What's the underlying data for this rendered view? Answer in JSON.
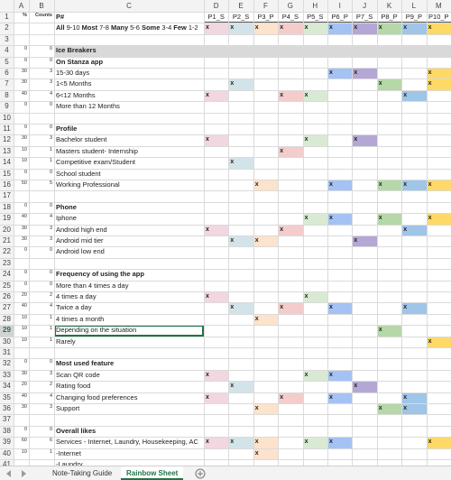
{
  "columns": [
    "A",
    "B",
    "C",
    "D",
    "E",
    "F",
    "G",
    "H",
    "I",
    "J",
    "K",
    "L",
    "M"
  ],
  "mark_colors": [
    "#f2d7e0",
    "#d3e3ea",
    "#fde2cc",
    "#f4cccc",
    "#d9ead3",
    "#a4c2f4",
    "#b4a7d6",
    "#b6d7a8",
    "#9fc5e8",
    "#ffd966"
  ],
  "rows": [
    {
      "n": 1,
      "pct": "%",
      "count": "Counts",
      "label": "P#",
      "kind": "header",
      "marks": [
        "P1_S",
        "P2_S",
        "P3_P",
        "P4_S",
        "P5_S",
        "P6_P",
        "P7_S",
        "P8_P",
        "P9_P",
        "P10_P"
      ]
    },
    {
      "n": 2,
      "label_parts": [
        [
          "All",
          "9-10"
        ],
        [
          "Most",
          "7-8"
        ],
        [
          "Many",
          "5-6"
        ],
        [
          "Some",
          "3-4"
        ],
        [
          "Few",
          "1-2"
        ]
      ],
      "marks": [
        "x",
        "x",
        "x",
        "x",
        "x",
        "x",
        "x",
        "x",
        "x",
        "x"
      ]
    },
    {
      "n": 3
    },
    {
      "n": 4,
      "pct": 0,
      "count": 0,
      "label": "Ice Breakers",
      "kind": "section"
    },
    {
      "n": 5,
      "pct": 0,
      "count": 0,
      "label": "On Stanza app",
      "kind": "heading"
    },
    {
      "n": 6,
      "pct": 30,
      "count": 3,
      "label": "15-30 days",
      "marks": [
        null,
        null,
        null,
        null,
        null,
        "x",
        "x",
        null,
        null,
        "x"
      ]
    },
    {
      "n": 7,
      "pct": 30,
      "count": 3,
      "label": "1<5 Months",
      "marks": [
        null,
        "x",
        null,
        null,
        null,
        null,
        null,
        "x",
        null,
        "x"
      ]
    },
    {
      "n": 8,
      "pct": 40,
      "count": 4,
      "label": "6<12 Months",
      "marks": [
        "x",
        null,
        null,
        "x",
        "x",
        null,
        null,
        null,
        "x",
        null
      ]
    },
    {
      "n": 9,
      "pct": 0,
      "count": 0,
      "label": "More than 12 Months"
    },
    {
      "n": 10
    },
    {
      "n": 11,
      "pct": 0,
      "count": 0,
      "label": "Profile",
      "kind": "heading"
    },
    {
      "n": 12,
      "pct": 30,
      "count": 3,
      "label": "Bachelor student",
      "marks": [
        "x",
        null,
        null,
        null,
        "x",
        null,
        "x",
        null,
        null,
        null
      ]
    },
    {
      "n": 13,
      "pct": 10,
      "count": 1,
      "label": "Masters student- Internship",
      "marks": [
        null,
        null,
        null,
        "x",
        null,
        null,
        null,
        null,
        null,
        null
      ]
    },
    {
      "n": 14,
      "pct": 10,
      "count": 1,
      "label": "Competitive exam/Student",
      "marks": [
        null,
        "x",
        null,
        null,
        null,
        null,
        null,
        null,
        null,
        null
      ]
    },
    {
      "n": 15,
      "pct": 0,
      "count": 0,
      "label": "School student"
    },
    {
      "n": 16,
      "pct": 50,
      "count": 5,
      "label": "Working Professional",
      "marks": [
        null,
        null,
        "x",
        null,
        null,
        "x",
        null,
        "x",
        "x",
        "x"
      ]
    },
    {
      "n": 17
    },
    {
      "n": 18,
      "pct": 0,
      "count": 0,
      "label": "Phone",
      "kind": "heading"
    },
    {
      "n": 19,
      "pct": 40,
      "count": 4,
      "label": "Iphone",
      "marks": [
        null,
        null,
        null,
        null,
        "x",
        "x",
        null,
        "x",
        null,
        "x"
      ]
    },
    {
      "n": 20,
      "pct": 30,
      "count": 3,
      "label": "Android high end",
      "marks": [
        "x",
        null,
        null,
        "x",
        null,
        null,
        null,
        null,
        "x",
        null
      ]
    },
    {
      "n": 21,
      "pct": 30,
      "count": 3,
      "label": "Android mid tier",
      "marks": [
        null,
        "x",
        "x",
        null,
        null,
        null,
        "x",
        null,
        null,
        null
      ]
    },
    {
      "n": 22,
      "pct": 0,
      "count": 0,
      "label": "Android low end"
    },
    {
      "n": 23
    },
    {
      "n": 24,
      "pct": 0,
      "count": 0,
      "label": "Frequency of using the app",
      "kind": "heading"
    },
    {
      "n": 25,
      "pct": 0,
      "count": 0,
      "label": "More than 4 times a day"
    },
    {
      "n": 26,
      "pct": 20,
      "count": 2,
      "label": "4 times a day",
      "marks": [
        "x",
        null,
        null,
        null,
        "x",
        null,
        null,
        null,
        null,
        null
      ]
    },
    {
      "n": 27,
      "pct": 40,
      "count": 4,
      "label": "Twice a day",
      "marks": [
        null,
        "x",
        null,
        "x",
        null,
        "x",
        null,
        null,
        "x",
        null
      ]
    },
    {
      "n": 28,
      "pct": 10,
      "count": 1,
      "label": "4 times a month",
      "marks": [
        null,
        null,
        "x",
        null,
        null,
        null,
        null,
        null,
        null,
        null
      ]
    },
    {
      "n": 29,
      "pct": 10,
      "count": 1,
      "label": "Depending on the situation",
      "selected": true,
      "marks": [
        null,
        null,
        null,
        null,
        null,
        null,
        null,
        "x",
        null,
        null
      ]
    },
    {
      "n": 30,
      "pct": 10,
      "count": 1,
      "label": "Rarely",
      "marks": [
        null,
        null,
        null,
        null,
        null,
        null,
        null,
        null,
        null,
        "x"
      ]
    },
    {
      "n": 31
    },
    {
      "n": 32,
      "pct": 0,
      "count": 0,
      "label": "Most used feature",
      "kind": "heading"
    },
    {
      "n": 33,
      "pct": 30,
      "count": 3,
      "label": "Scan QR code",
      "marks": [
        "x",
        null,
        null,
        null,
        "x",
        "x",
        null,
        null,
        null,
        null
      ]
    },
    {
      "n": 34,
      "pct": 20,
      "count": 2,
      "label": "Rating food",
      "marks": [
        null,
        "x",
        null,
        null,
        null,
        null,
        "x",
        null,
        null,
        null
      ]
    },
    {
      "n": 35,
      "pct": 40,
      "count": 4,
      "label": "Changing food preferences",
      "marks": [
        "x",
        null,
        null,
        "x",
        null,
        "x",
        null,
        null,
        "x",
        null
      ]
    },
    {
      "n": 36,
      "pct": 30,
      "count": 3,
      "label": "Support",
      "marks": [
        null,
        null,
        "x",
        null,
        null,
        null,
        null,
        "x",
        "x",
        null
      ]
    },
    {
      "n": 37
    },
    {
      "n": 38,
      "pct": 0,
      "count": 0,
      "label": "Overall likes",
      "kind": "heading"
    },
    {
      "n": 39,
      "pct": 60,
      "count": 6,
      "label": "Services - Internet, Laundry, Housekeeping, AC",
      "marks": [
        "x",
        "x",
        "x",
        null,
        "x",
        "x",
        null,
        null,
        null,
        "x"
      ]
    },
    {
      "n": 40,
      "pct": 10,
      "count": 1,
      "label": "-Internet",
      "marks": [
        null,
        null,
        "x",
        null,
        null,
        null,
        null,
        null,
        null,
        null
      ]
    },
    {
      "n": 41,
      "label": "-Laundry"
    }
  ],
  "tabs": [
    {
      "name": "Note-Taking Guide"
    },
    {
      "name": "Rainbow Sheet",
      "active": true
    }
  ]
}
